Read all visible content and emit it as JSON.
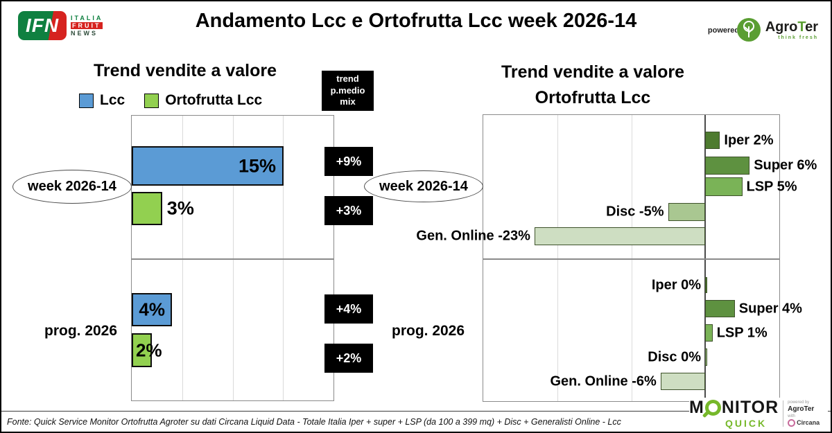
{
  "header": {
    "title": "Andamento Lcc e Ortofrutta Lcc week 2026-14",
    "ifn_logo": {
      "acronym": "IFN",
      "words": [
        "ITALIA",
        "FRUIT",
        "NEWS"
      ]
    },
    "powered_by_label": "powered by",
    "agroter_logo": {
      "name_prefix": "Agro",
      "name_t": "T",
      "name_suffix": "er",
      "tagline": "think fresh"
    }
  },
  "chart_data": [
    {
      "type": "bar",
      "orientation": "horizontal",
      "title": "Trend vendite a valore",
      "unit": "%",
      "xlim": [
        0,
        20
      ],
      "grid_step": 5,
      "grid": true,
      "legend": [
        {
          "label": "Lcc",
          "color": "#5B9BD5"
        },
        {
          "label": "Ortofrutta Lcc",
          "color": "#92D050"
        }
      ],
      "trend_box": {
        "lines": [
          "trend",
          "p.medio",
          "mix"
        ]
      },
      "groups": [
        {
          "category": "week 2026-14",
          "bars": [
            {
              "series": "Lcc",
              "value": 15,
              "label": "15%",
              "color": "#5B9BD5"
            },
            {
              "series": "Ortofrutta Lcc",
              "value": 3,
              "label": "3%",
              "color": "#92D050"
            }
          ],
          "trend": [
            {
              "series": "Lcc",
              "value": 9,
              "label": "+9%"
            },
            {
              "series": "Ortofrutta Lcc",
              "value": 3,
              "label": "+3%"
            }
          ]
        },
        {
          "category": "prog. 2026",
          "bars": [
            {
              "series": "Lcc",
              "value": 4,
              "label": "4%",
              "color": "#5B9BD5"
            },
            {
              "series": "Ortofrutta Lcc",
              "value": 2,
              "label": "2%",
              "color": "#92D050"
            }
          ],
          "trend": [
            {
              "series": "Lcc",
              "value": 4,
              "label": "+4%"
            },
            {
              "series": "Ortofrutta Lcc",
              "value": 2,
              "label": "+2%"
            }
          ]
        }
      ]
    },
    {
      "type": "bar",
      "orientation": "horizontal",
      "title": "Trend vendite a valore Ortofrutta Lcc",
      "title_line1": "Trend vendite a valore",
      "title_line2": "Ortofrutta Lcc",
      "unit": "%",
      "xlim": [
        -30,
        10
      ],
      "grid_step": 10,
      "grid": true,
      "groups": [
        {
          "category": "week 2026-14",
          "bars": [
            {
              "series": "Iper",
              "value": 2,
              "label": "Iper 2%",
              "color": "#4E7B2F"
            },
            {
              "series": "Super",
              "value": 6,
              "label": "Super 6%",
              "color": "#5E9140"
            },
            {
              "series": "LSP",
              "value": 5,
              "label": "LSP 5%",
              "color": "#7AB357"
            },
            {
              "series": "Disc",
              "value": -5,
              "label": "Disc -5%",
              "color": "#A9C791"
            },
            {
              "series": "Gen. Online",
              "value": -23,
              "label": "Gen. Online -23%",
              "color": "#CEDEC2"
            }
          ]
        },
        {
          "category": "prog. 2026",
          "bars": [
            {
              "series": "Iper",
              "value": 0,
              "label": "Iper 0%",
              "color": "#4E7B2F"
            },
            {
              "series": "Super",
              "value": 4,
              "label": "Super 4%",
              "color": "#5E9140"
            },
            {
              "series": "LSP",
              "value": 1,
              "label": "LSP 1%",
              "color": "#7AB357"
            },
            {
              "series": "Disc",
              "value": 0,
              "label": "Disc 0%",
              "color": "#A9C791"
            },
            {
              "series": "Gen. Online",
              "value": -6,
              "label": "Gen. Online -6%",
              "color": "#CEDEC2"
            }
          ]
        }
      ]
    }
  ],
  "footer": {
    "source": "Fonte: Quick Service Monitor Ortofrutta Agroter su dati Circana Liquid Data - Totale Italia Iper + super + LSP (da 100 a 399 mq) + Disc + Generalisti Online - Lcc"
  },
  "monitor_quick_logo": {
    "name_prefix": "M",
    "name_suffix": "NITOR",
    "sub": "QUICK",
    "powered_by": "powered by",
    "partner1": "AgroTer",
    "with_label": "with",
    "partner2": "Circana"
  }
}
